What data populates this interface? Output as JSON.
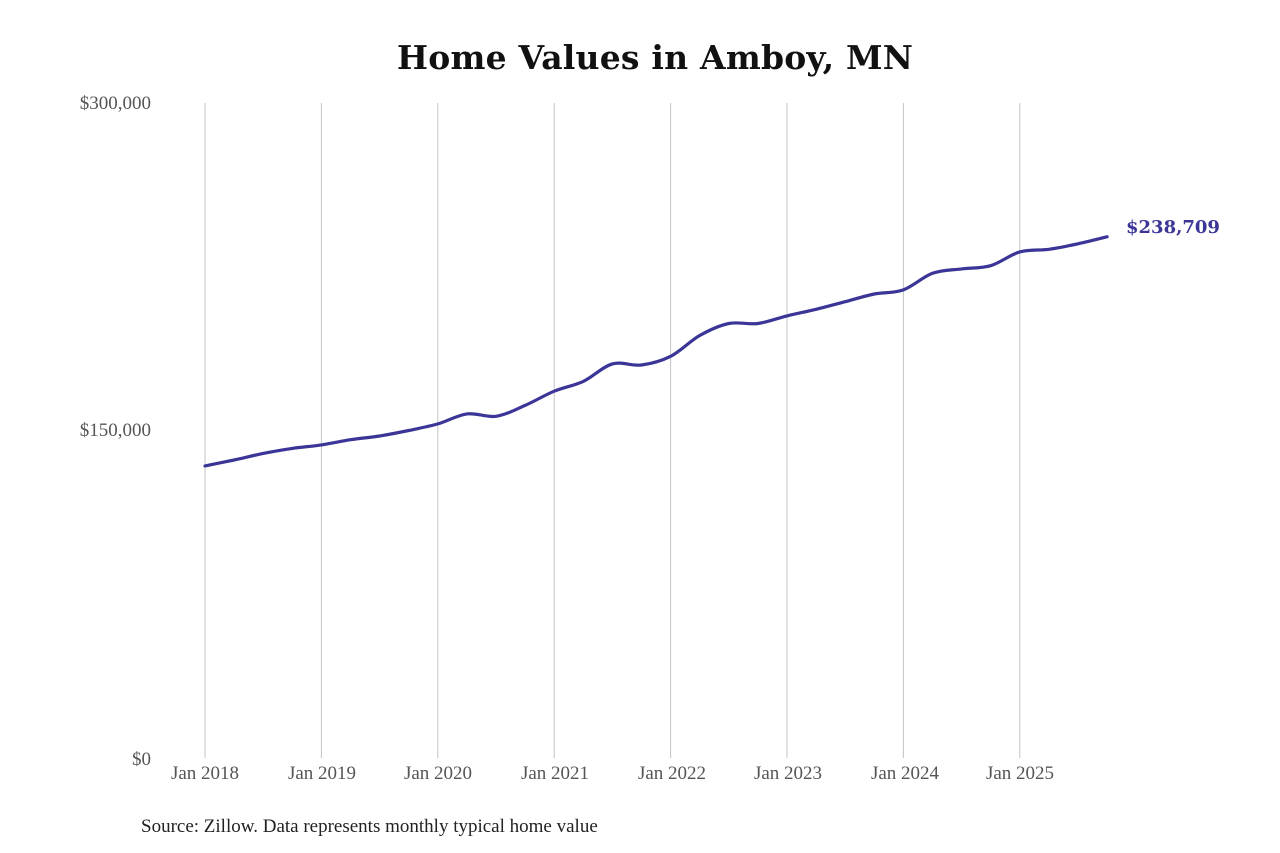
{
  "chart_data": {
    "type": "line",
    "title": "Home Values in Amboy, MN",
    "xlabel": "",
    "ylabel": "",
    "ylim": [
      0,
      300000
    ],
    "yticks": [
      {
        "value": 0,
        "label": "$0"
      },
      {
        "value": 150000,
        "label": "$150,000"
      },
      {
        "value": 300000,
        "label": "$300,000"
      }
    ],
    "xticks": [
      "Jan 2018",
      "Jan 2019",
      "Jan 2020",
      "Jan 2021",
      "Jan 2022",
      "Jan 2023",
      "Jan 2024",
      "Jan 2025"
    ],
    "grid": {
      "vertical": true,
      "horizontal": false
    },
    "legend": null,
    "x": [
      "Jan 2018",
      "Apr 2018",
      "Jul 2018",
      "Oct 2018",
      "Jan 2019",
      "Apr 2019",
      "Jul 2019",
      "Oct 2019",
      "Jan 2020",
      "Apr 2020",
      "Jul 2020",
      "Oct 2020",
      "Jan 2021",
      "Apr 2021",
      "Jul 2021",
      "Oct 2021",
      "Jan 2022",
      "Apr 2022",
      "Jul 2022",
      "Oct 2022",
      "Jan 2023",
      "Apr 2023",
      "Jul 2023",
      "Oct 2023",
      "Jan 2024",
      "Apr 2024",
      "Jul 2024",
      "Oct 2024",
      "Jan 2025",
      "Apr 2025",
      "Jul 2025",
      "Oct 2025"
    ],
    "series": [
      {
        "name": "Typical home value",
        "color": "#3a3597",
        "values": [
          133800,
          136500,
          139500,
          141800,
          143400,
          145800,
          147500,
          150000,
          153000,
          157600,
          156500,
          161500,
          168000,
          172500,
          180500,
          180000,
          184000,
          193500,
          199000,
          199000,
          202500,
          205500,
          209000,
          212500,
          214400,
          222000,
          224000,
          225500,
          231800,
          233000,
          235500,
          238709
        ]
      }
    ],
    "end_label": "$238,709",
    "source_note": "Source: Zillow. Data represents monthly typical home value"
  },
  "colors": {
    "line": "#3a3597",
    "grid": "#c4c4c4",
    "tick_text": "#555555"
  }
}
